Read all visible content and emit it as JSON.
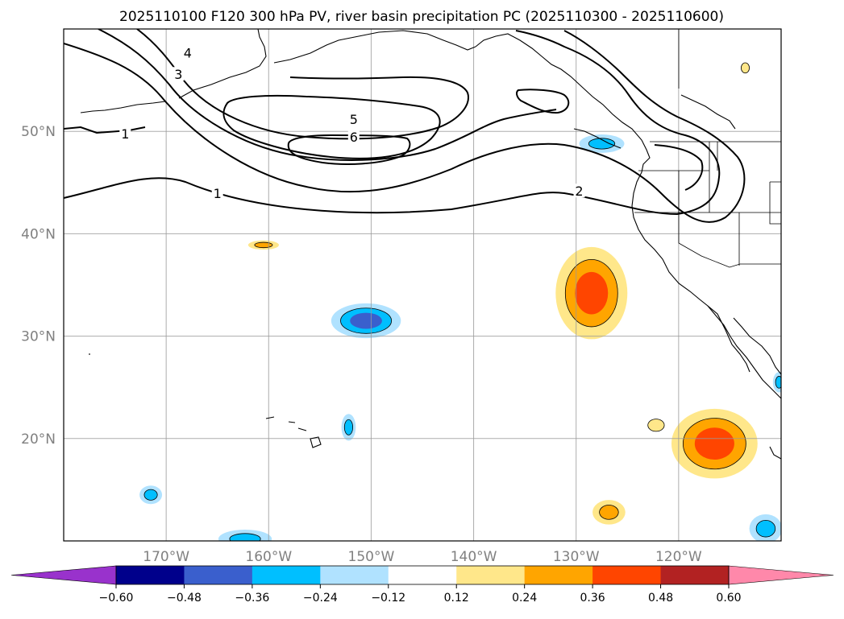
{
  "chart_data": {
    "type": "contour-map",
    "title": "2025110100 F120 300 hPa PV, river basin precipitation PC (2025110300 - 2025110600)",
    "projection": "Plate Carree",
    "xlim": [
      -180,
      -110
    ],
    "ylim": [
      10,
      60
    ],
    "lat_ticks": [
      {
        "value": 50,
        "label": "50°N"
      },
      {
        "value": 40,
        "label": "40°N"
      },
      {
        "value": 30,
        "label": "30°N"
      },
      {
        "value": 20,
        "label": "20°N"
      }
    ],
    "lon_ticks": [
      {
        "value": -170,
        "label": "170°W"
      },
      {
        "value": -160,
        "label": "160°W"
      },
      {
        "value": -150,
        "label": "150°W"
      },
      {
        "value": -140,
        "label": "140°W"
      },
      {
        "value": -130,
        "label": "130°W"
      },
      {
        "value": -120,
        "label": "120°W"
      }
    ],
    "pv_contour_labels": [
      {
        "text": "1",
        "lon": -174,
        "lat": 49.7
      },
      {
        "text": "1",
        "lon": -165,
        "lat": 43.9
      },
      {
        "text": "2",
        "lon": -129.7,
        "lat": 44.1
      },
      {
        "text": "3",
        "lon": -168.8,
        "lat": 55.5
      },
      {
        "text": "4",
        "lon": -167.9,
        "lat": 57.6
      },
      {
        "text": "5",
        "lon": -151.7,
        "lat": 51.1
      },
      {
        "text": "6",
        "lon": -151.7,
        "lat": 49.4
      }
    ],
    "colorbar": {
      "levels": [
        -0.6,
        -0.48,
        -0.36,
        -0.24,
        -0.12,
        0.12,
        0.24,
        0.36,
        0.48,
        0.6
      ],
      "tick_labels": [
        "−0.60",
        "−0.48",
        "−0.36",
        "−0.24",
        "−0.12",
        "0.12",
        "0.24",
        "0.36",
        "0.48",
        "0.60"
      ],
      "colors": [
        "#9932cc",
        "#00008b",
        "#3a5fcd",
        "#00bfff",
        "#b0e2ff",
        "#ffffff",
        "#ffe78a",
        "#ffa500",
        "#ff4500",
        "#b22222",
        "#ff88aa"
      ],
      "extend": "both"
    },
    "precip_pc_blobs": [
      {
        "lon": -128.5,
        "lat": 34.2,
        "rx": 3.5,
        "ry": 4.5,
        "levels": [
          0.12,
          0.24,
          0.36
        ]
      },
      {
        "lon": -116.5,
        "lat": 19.5,
        "rx": 4.2,
        "ry": 3.4,
        "levels": [
          0.12,
          0.24,
          0.36
        ]
      },
      {
        "lon": -126.8,
        "lat": 12.8,
        "rx": 1.6,
        "ry": 1.2,
        "levels": [
          0.12,
          0.24
        ]
      },
      {
        "lon": -160.5,
        "lat": 38.9,
        "rx": 1.5,
        "ry": 0.45,
        "levels": [
          0.12,
          0.24
        ]
      },
      {
        "lon": -122.2,
        "lat": 21.3,
        "rx": 0.8,
        "ry": 0.6,
        "levels": [
          0.12
        ]
      },
      {
        "lon": -113.5,
        "lat": 56.2,
        "rx": 0.4,
        "ry": 0.5,
        "levels": [
          0.12
        ]
      },
      {
        "lon": -150.5,
        "lat": 31.5,
        "rx": 3.4,
        "ry": 1.7,
        "levels": [
          -0.12,
          -0.24,
          -0.36
        ]
      },
      {
        "lon": -127.5,
        "lat": 48.8,
        "rx": 2.2,
        "ry": 0.9,
        "levels": [
          -0.12,
          -0.24
        ]
      },
      {
        "lon": -171.5,
        "lat": 14.5,
        "rx": 1.1,
        "ry": 0.9,
        "levels": [
          -0.12,
          -0.24
        ]
      },
      {
        "lon": -152.2,
        "lat": 21.1,
        "rx": 0.7,
        "ry": 1.3,
        "levels": [
          -0.12,
          -0.24
        ]
      },
      {
        "lon": -162.3,
        "lat": 10.2,
        "rx": 2.6,
        "ry": 0.9,
        "levels": [
          -0.12,
          -0.24
        ]
      },
      {
        "lon": -111.5,
        "lat": 11.2,
        "rx": 1.6,
        "ry": 1.4,
        "levels": [
          -0.12,
          -0.24
        ]
      },
      {
        "lon": -110.2,
        "lat": 25.5,
        "rx": 0.6,
        "ry": 1.0,
        "levels": [
          -0.12,
          -0.24
        ]
      }
    ]
  }
}
